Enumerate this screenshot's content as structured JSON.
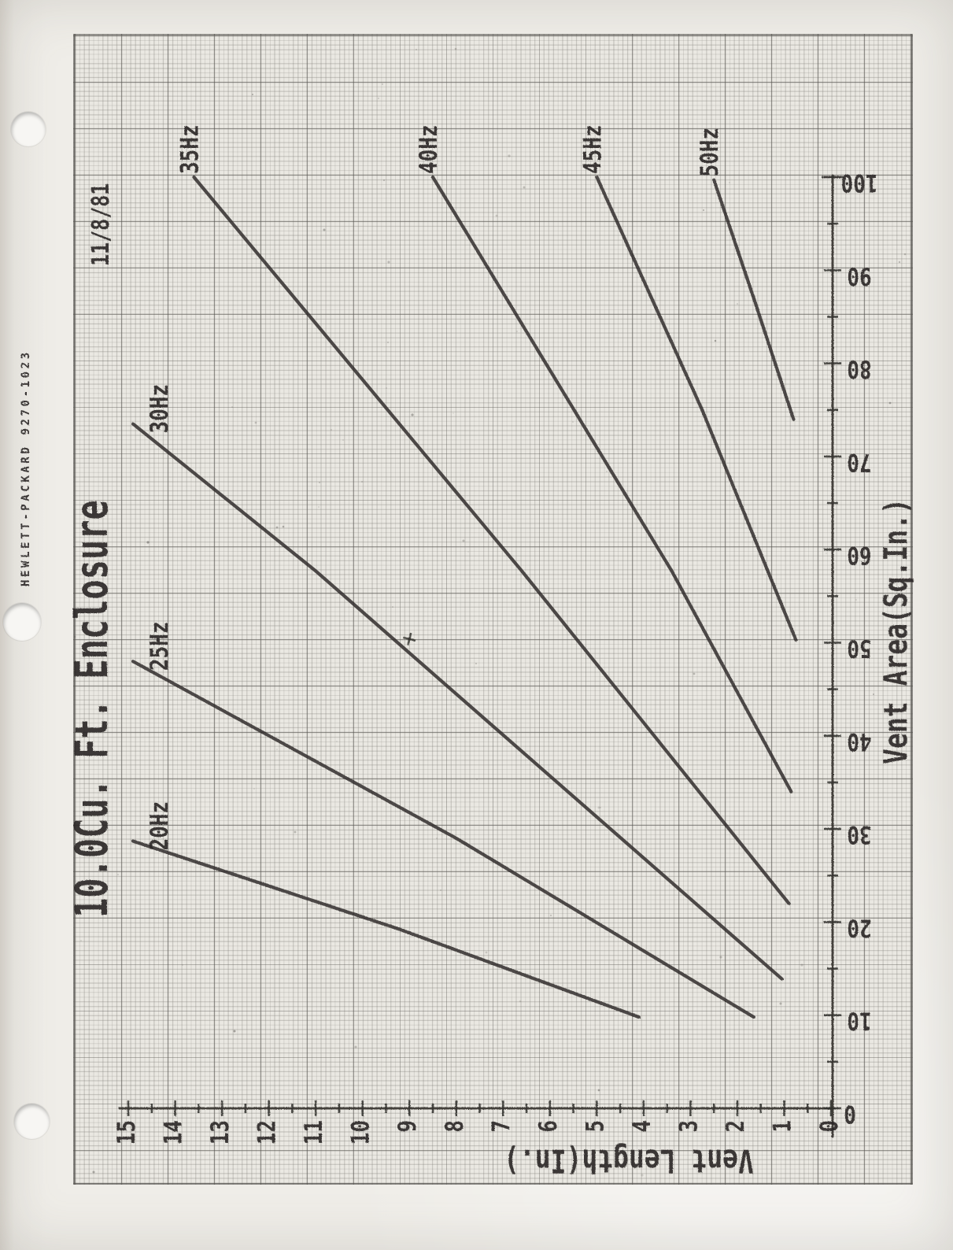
{
  "page": {
    "margin_brand": "HEWLETT-PACKARD  9270-1023",
    "date": "11/8/81",
    "orientation_note": "landscape plot scanned rotated 90 degrees CCW on punched graph paper"
  },
  "chart_data": {
    "type": "line",
    "title": "10.0Cu. Ft. Enclosure",
    "xlabel": "Vent Area(Sq.In.)",
    "ylabel": "Vent Length(In.)",
    "xlim": [
      0,
      100
    ],
    "ylim": [
      0,
      15
    ],
    "x_ticks": [
      0,
      10,
      20,
      30,
      40,
      50,
      60,
      70,
      80,
      90,
      100
    ],
    "x_minor_step": 5,
    "y_ticks": [
      0,
      1,
      2,
      3,
      4,
      5,
      6,
      7,
      8,
      9,
      10,
      11,
      12,
      13,
      14,
      15
    ],
    "y_minor_step": 0.5,
    "grid": "engineering graph paper, 10 minor divisions per major square",
    "legend_position": "labels at upper end of each line",
    "series": [
      {
        "name": "20Hz",
        "label_side": "left",
        "points": [
          [
            9.8,
            4.1
          ],
          [
            19.3,
            9.25
          ],
          [
            28.7,
            14.9
          ]
        ]
      },
      {
        "name": "25Hz",
        "label_side": "left",
        "points": [
          [
            9.8,
            1.65
          ],
          [
            29.0,
            8.0
          ],
          [
            48.0,
            14.9
          ]
        ]
      },
      {
        "name": "30Hz",
        "label_side": "left",
        "points": [
          [
            13.9,
            1.05
          ],
          [
            57.7,
            11.0
          ],
          [
            73.5,
            14.9
          ]
        ]
      },
      {
        "name": "35Hz",
        "label_side": "top",
        "points": [
          [
            22.0,
            0.9
          ],
          [
            57.7,
            6.6
          ],
          [
            100.0,
            13.6
          ]
        ]
      },
      {
        "name": "40Hz",
        "label_side": "top",
        "points": [
          [
            34.0,
            0.85
          ],
          [
            57.7,
            3.4
          ],
          [
            100.0,
            8.5
          ]
        ]
      },
      {
        "name": "45Hz",
        "label_side": "top",
        "points": [
          [
            50.3,
            0.75
          ],
          [
            75.0,
            2.75
          ],
          [
            100.0,
            5.0
          ]
        ]
      },
      {
        "name": "50Hz",
        "label_side": "top",
        "points": [
          [
            74.0,
            0.8
          ],
          [
            87.0,
            1.65
          ],
          [
            99.7,
            2.5
          ]
        ]
      }
    ],
    "marker": {
      "area": 50.4,
      "length": 9.0,
      "symbol": "+"
    }
  }
}
